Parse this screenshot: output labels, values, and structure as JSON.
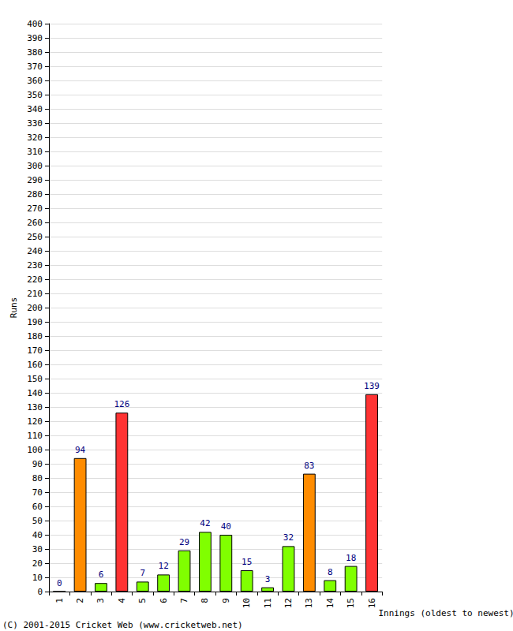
{
  "chart_data": {
    "type": "bar",
    "x_label": "Innings (oldest to newest)",
    "y_label": "Runs",
    "annotations": [
      "(C) 2001-2015 Cricket Web (www.cricketweb.net)"
    ],
    "categories": [
      "1",
      "2",
      "3",
      "4",
      "5",
      "6",
      "7",
      "8",
      "9",
      "10",
      "11",
      "12",
      "13",
      "14",
      "15",
      "16"
    ],
    "values": [
      0,
      94,
      6,
      126,
      7,
      12,
      29,
      42,
      40,
      15,
      3,
      32,
      83,
      8,
      18,
      139
    ],
    "colors": [
      "#80ff00",
      "#ff8c00",
      "#80ff00",
      "#ff3333",
      "#80ff00",
      "#80ff00",
      "#80ff00",
      "#80ff00",
      "#80ff00",
      "#80ff00",
      "#80ff00",
      "#80ff00",
      "#ff8c00",
      "#80ff00",
      "#80ff00",
      "#ff3333"
    ],
    "ylim": [
      0,
      400
    ],
    "yticks": [
      0,
      10,
      20,
      30,
      40,
      50,
      60,
      70,
      80,
      90,
      100,
      110,
      120,
      130,
      140,
      150,
      160,
      170,
      180,
      190,
      200,
      210,
      220,
      230,
      240,
      250,
      260,
      270,
      280,
      290,
      300,
      310,
      320,
      330,
      340,
      350,
      360,
      370,
      380,
      390,
      400
    ],
    "grid": true,
    "data_labels": true
  }
}
